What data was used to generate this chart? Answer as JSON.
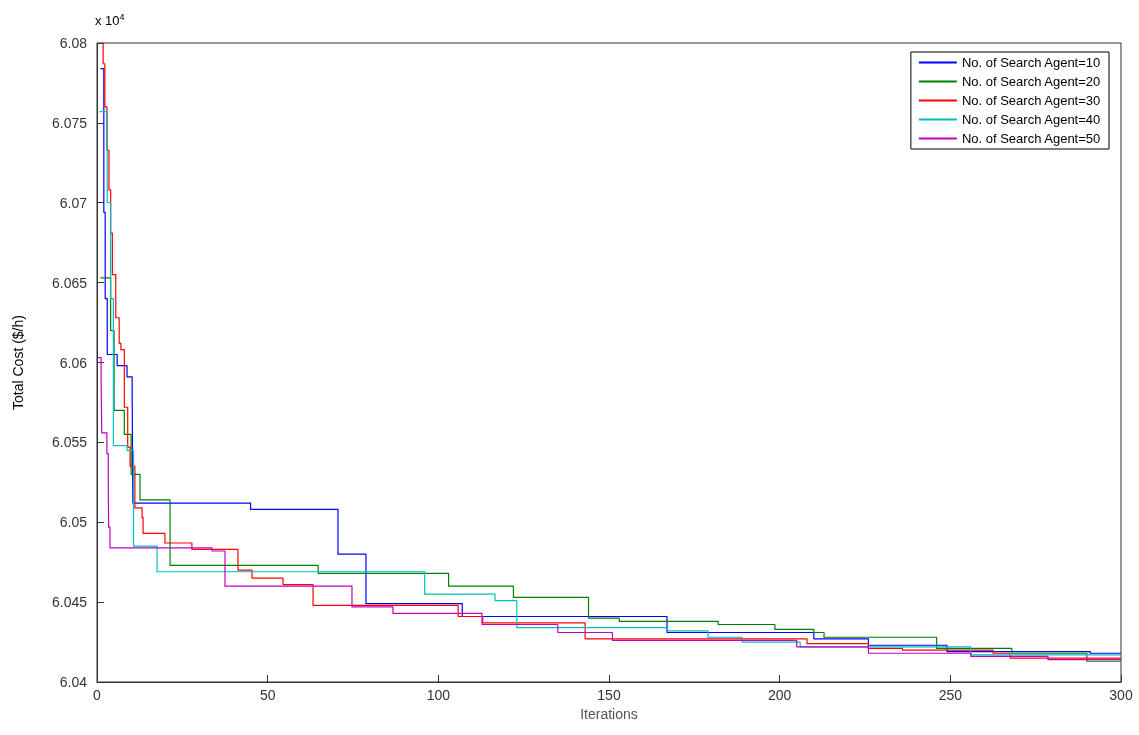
{
  "chart_data": {
    "type": "step",
    "xlabel": "Iterations",
    "ylabel": "Total Cost ($/h)",
    "annotations": [
      "x 10$^{4}$"
    ],
    "xlim": [
      0,
      300
    ],
    "xticks": [
      0,
      50,
      100,
      150,
      200,
      250,
      300
    ],
    "ylim": [
      6.04,
      6.08
    ],
    "yticks": [
      6.04,
      6.045,
      6.05,
      6.055,
      6.06,
      6.065,
      6.07,
      6.075,
      6.08
    ],
    "grid": false,
    "legend": "top right",
    "marker": "none",
    "line_style": "solid",
    "series": [
      {
        "name": "No. of Search Agent=10",
        "color": "#0000ff",
        "x": [
          1,
          2,
          2.4,
          3,
          5.9,
          8.8,
          10.3,
          10.5,
          45,
          70.6,
          78.8,
          107,
          167,
          210,
          226,
          249,
          291,
          300
        ],
        "values": [
          6.0784,
          6.0694,
          6.064,
          6.0605,
          6.0598,
          6.0591,
          6.058,
          6.0512,
          6.0508,
          6.048,
          6.0449,
          6.0441,
          6.0431,
          6.0427,
          6.0423,
          6.0419,
          6.0418,
          6.0418
        ]
      },
      {
        "name": "No. of Search Agent=20",
        "color": "#008000",
        "x": [
          1,
          4,
          5,
          8,
          10,
          12.6,
          21.4,
          64.8,
          103,
          122,
          144,
          153,
          182,
          198.6,
          210,
          213,
          246,
          268,
          290,
          300
        ],
        "values": [
          6.0653,
          6.062,
          6.057,
          6.0555,
          6.053,
          6.0514,
          6.0473,
          6.0468,
          6.046,
          6.0453,
          6.044,
          6.0438,
          6.0436,
          6.0433,
          6.0431,
          6.0428,
          6.0421,
          6.0418,
          6.0413,
          6.0413
        ]
      },
      {
        "name": "No. of Search Agent=30",
        "color": "#ff0000",
        "x": [
          1,
          1.8,
          2.3,
          2.9,
          3.5,
          4,
          4.5,
          5.5,
          6.5,
          7,
          8,
          9,
          9.7,
          11.1,
          13.2,
          13.5,
          19.9,
          27.8,
          41.3,
          45.4,
          54.5,
          63.3,
          105.8,
          113,
          143,
          208,
          226,
          236,
          262.5,
          267.5,
          300
        ],
        "values": [
          6.08,
          6.0787,
          6.076,
          6.0733,
          6.0708,
          6.0681,
          6.0655,
          6.0628,
          6.0612,
          6.0608,
          6.0572,
          6.0547,
          6.0535,
          6.0509,
          6.0503,
          6.0493,
          6.0487,
          6.0483,
          6.047,
          6.0465,
          6.0461,
          6.0448,
          6.0441,
          6.0437,
          6.0427,
          6.0424,
          6.0421,
          6.042,
          6.0418,
          6.0415,
          6.0415
        ]
      },
      {
        "name": "No. of Search Agent=40",
        "color": "#00bfbf",
        "x": [
          0.7,
          3,
          4,
          4.8,
          8.8,
          10.7,
          17.6,
          96,
          116.6,
          123,
          167,
          179,
          189,
          206,
          256,
          300
        ],
        "values": [
          6.0757,
          6.07,
          6.064,
          6.0548,
          6.0545,
          6.0485,
          6.0469,
          6.0455,
          6.0451,
          6.0434,
          6.0432,
          6.0428,
          6.0425,
          6.0422,
          6.0417,
          6.0417
        ]
      },
      {
        "name": "No. of Search Agent=50",
        "color": "#bf00bf",
        "x": [
          0.3,
          1.2,
          1.4,
          2.9,
          3.3,
          3.4,
          3.8,
          33.7,
          37.5,
          74.7,
          86.7,
          112.8,
          135,
          151,
          205,
          226,
          256,
          278.6,
          300
        ],
        "values": [
          6.0603,
          6.0588,
          6.0556,
          6.0543,
          6.0526,
          6.0497,
          6.0484,
          6.0482,
          6.046,
          6.0447,
          6.0443,
          6.0436,
          6.0431,
          6.0426,
          6.0422,
          6.0418,
          6.0416,
          6.0414,
          6.0414
        ]
      }
    ]
  }
}
